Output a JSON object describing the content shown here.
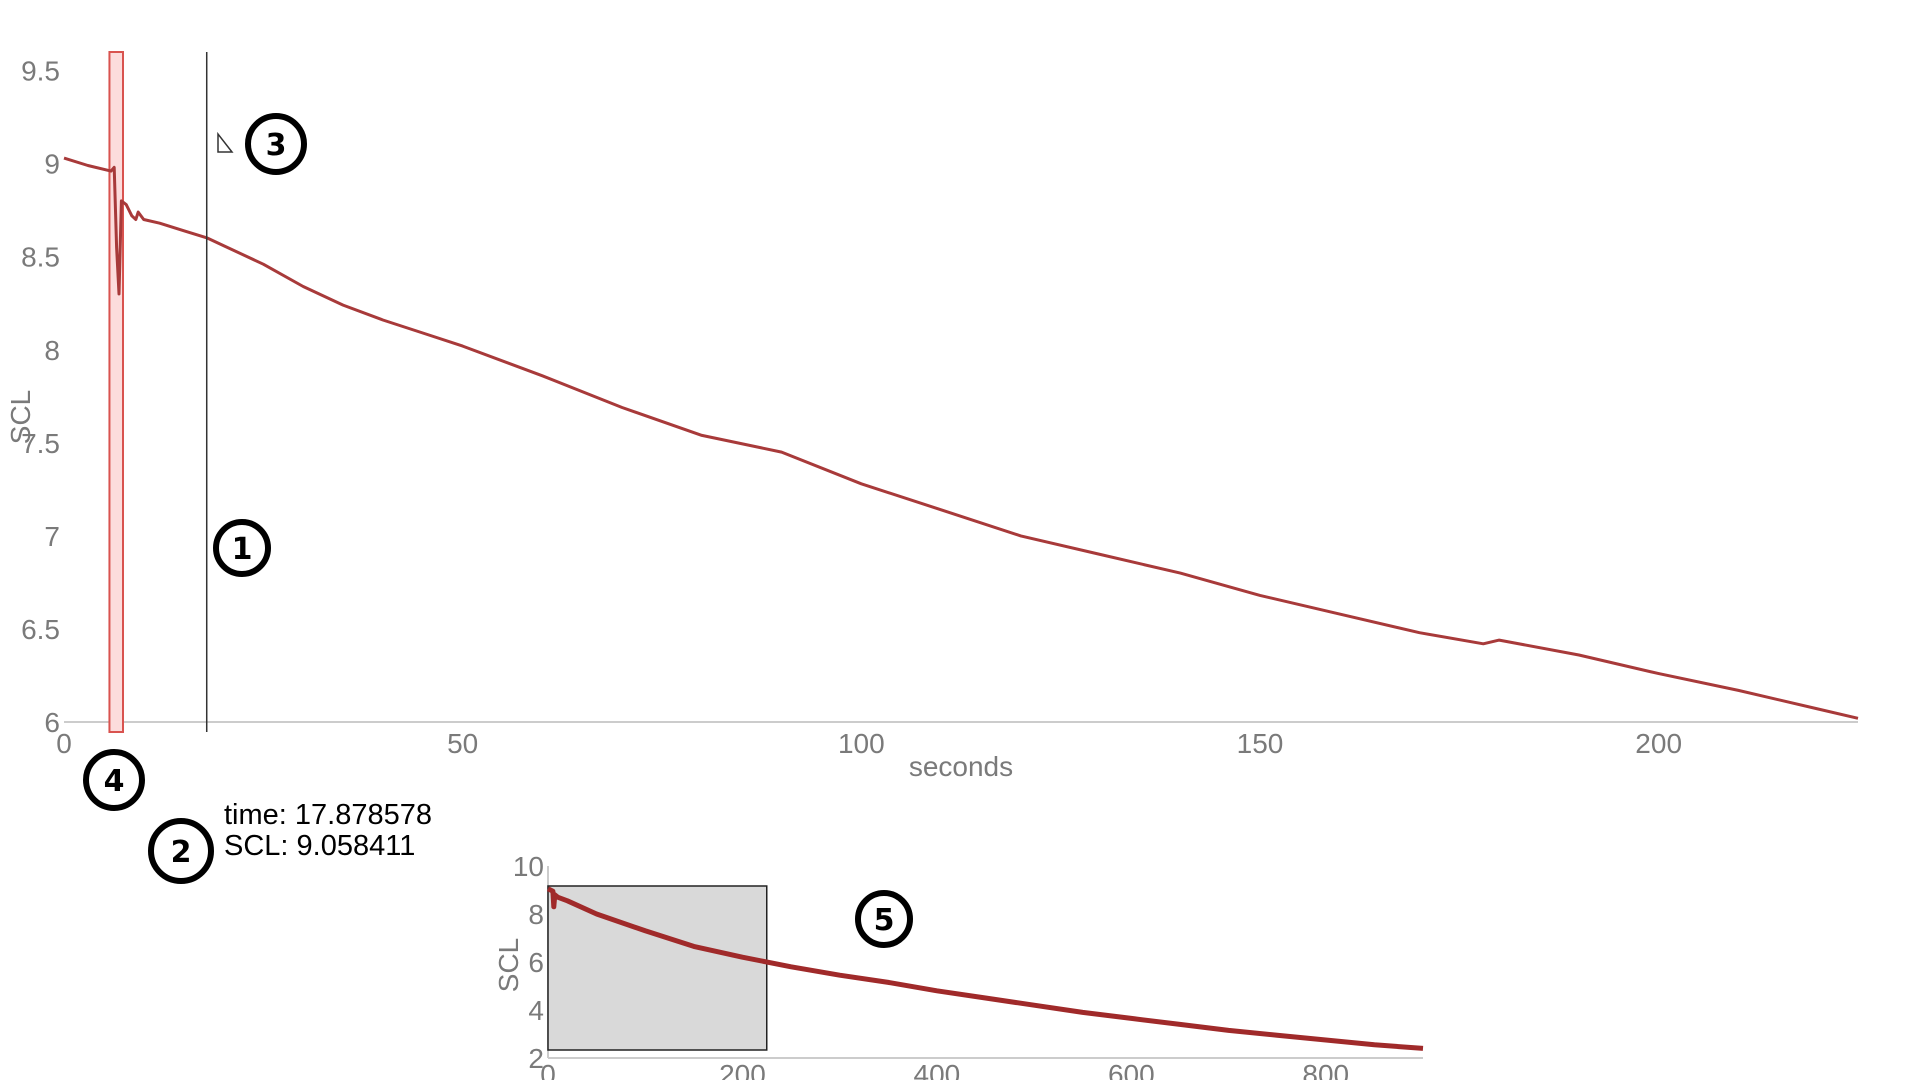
{
  "colors": {
    "series": "#a83a3a",
    "series_mini": "#a02a2a",
    "axis": "#cccccc",
    "tick_text": "#7a7a7a",
    "selection_fill": "#fcdcdc",
    "selection_stroke": "#d9534f",
    "brush_fill": "#d9d9d9",
    "cursor": "#333333"
  },
  "readout": {
    "time_line": "time: 17.878578",
    "scl_line": "SCL: 9.058411"
  },
  "callouts": {
    "c1": "1",
    "c2": "2",
    "c3": "3",
    "c4": "4",
    "c5": "5"
  },
  "chart_data": [
    {
      "type": "line",
      "ylabel": "SCL",
      "xlabel": "seconds",
      "xlim": [
        0,
        225
      ],
      "ylim": [
        6,
        9.6
      ],
      "x_ticks": [
        0,
        50,
        100,
        150,
        200
      ],
      "x_tick_labels": [
        "0",
        "50",
        "100",
        "150",
        "200"
      ],
      "y_ticks": [
        6,
        6.5,
        7,
        7.5,
        8,
        8.5,
        9,
        9.5
      ],
      "y_tick_labels": [
        "6",
        "6.5",
        "7",
        "7.5",
        "8",
        "8.5",
        "9",
        "9.5"
      ],
      "grid": false,
      "cursor_x": 17.9,
      "selection_range": [
        5.7,
        7.4
      ],
      "series": [
        {
          "x": [
            0,
            3,
            5.9,
            6.3,
            6.6,
            6.9,
            7.2,
            7.8,
            8.5,
            9,
            9.3,
            10,
            12,
            15,
            18,
            20,
            25,
            30,
            35,
            40,
            45,
            50,
            60,
            70,
            80,
            90,
            100,
            110,
            120,
            130,
            140,
            150,
            160,
            170,
            178,
            180,
            190,
            200,
            210,
            220,
            225
          ],
          "y": [
            9.03,
            8.99,
            8.96,
            8.98,
            8.55,
            8.3,
            8.8,
            8.78,
            8.72,
            8.7,
            8.74,
            8.7,
            8.68,
            8.64,
            8.6,
            8.56,
            8.46,
            8.34,
            8.24,
            8.16,
            8.09,
            8.02,
            7.86,
            7.69,
            7.54,
            7.45,
            7.28,
            7.14,
            7.0,
            6.9,
            6.8,
            6.68,
            6.58,
            6.48,
            6.42,
            6.44,
            6.36,
            6.26,
            6.17,
            6.07,
            6.02
          ]
        }
      ]
    },
    {
      "type": "line",
      "ylabel": "SCL",
      "xlabel": "seconds",
      "xlim": [
        0,
        900
      ],
      "ylim": [
        2,
        10
      ],
      "x_ticks": [
        0,
        200,
        400,
        600,
        800
      ],
      "x_tick_labels": [
        "0",
        "200",
        "400",
        "600",
        "800"
      ],
      "y_ticks": [
        2,
        4,
        6,
        8,
        10
      ],
      "y_tick_labels": [
        "2",
        "4",
        "6",
        "8",
        "10"
      ],
      "grid": false,
      "brush_range": [
        0,
        225
      ],
      "series": [
        {
          "x": [
            0,
            5,
            6,
            7,
            10,
            20,
            50,
            100,
            150,
            200,
            250,
            300,
            350,
            400,
            450,
            500,
            550,
            600,
            650,
            700,
            750,
            800,
            850,
            900
          ],
          "y": [
            9.05,
            8.95,
            8.3,
            8.8,
            8.7,
            8.55,
            8.0,
            7.3,
            6.65,
            6.2,
            5.8,
            5.45,
            5.15,
            4.8,
            4.5,
            4.2,
            3.9,
            3.65,
            3.4,
            3.15,
            2.95,
            2.75,
            2.55,
            2.4
          ]
        }
      ]
    }
  ]
}
